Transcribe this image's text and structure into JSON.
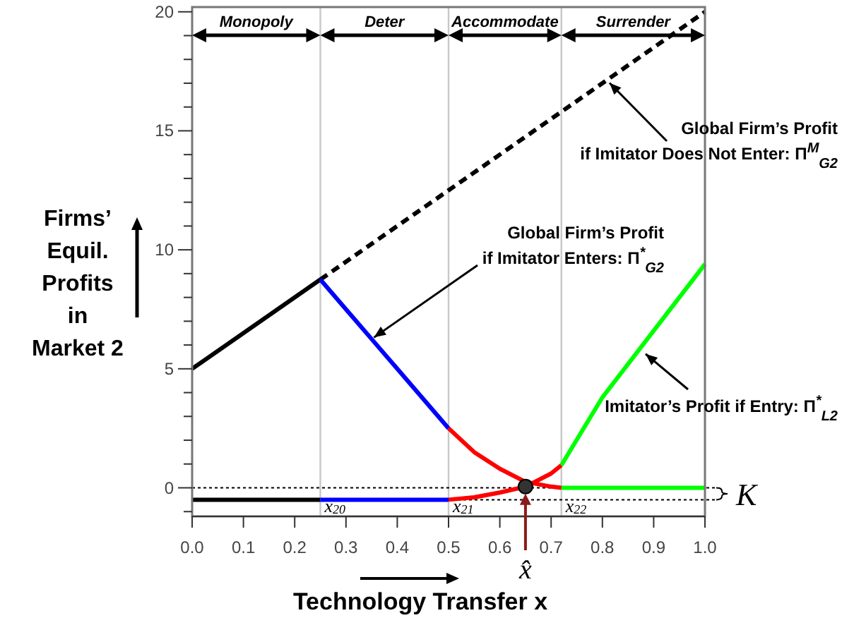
{
  "chart_data": {
    "type": "line",
    "xlabel": "Technology Transfer x",
    "ylabel": "Firms’ Equil. Profits in Market 2",
    "xlim": [
      0,
      1
    ],
    "ylim": [
      -1.2,
      20.2
    ],
    "xticks": [
      {
        "value": 0,
        "label": "0.0"
      },
      0.1,
      0.2,
      0.3,
      0.4,
      0.5,
      0.6,
      0.7,
      0.8,
      0.9,
      {
        "value": 1,
        "label": "1.0"
      }
    ],
    "yticks": [
      {
        "value": -1,
        "label": null
      },
      0,
      {
        "value": 1,
        "label": null
      },
      {
        "value": 2,
        "label": null
      },
      {
        "value": 3,
        "label": null
      },
      {
        "value": 4,
        "label": null
      },
      5,
      {
        "value": 6,
        "label": null
      },
      {
        "value": 7,
        "label": null
      },
      {
        "value": 8,
        "label": null
      },
      {
        "value": 9,
        "label": null
      },
      10,
      {
        "value": 11,
        "label": null
      },
      {
        "value": 12,
        "label": null
      },
      {
        "value": 13,
        "label": null
      },
      {
        "value": 14,
        "label": null
      },
      15,
      {
        "value": 16,
        "label": null
      },
      {
        "value": 17,
        "label": null
      },
      {
        "value": 18,
        "label": null
      },
      {
        "value": 19,
        "label": null
      },
      20
    ],
    "series": [
      {
        "type": "line",
        "color": "#000000",
        "x": [
          0,
          0.25
        ],
        "values": [
          5,
          8.75
        ],
        "line_style": "solid"
      },
      {
        "type": "line",
        "color": "#000000",
        "x": [
          0.25,
          1
        ],
        "values": [
          8.75,
          20
        ],
        "line_style": "dashed"
      },
      {
        "type": "line",
        "color": "#0000ff",
        "x": [
          0.25,
          0.3,
          0.35,
          0.4,
          0.45,
          0.5
        ],
        "values": [
          8.75,
          7.5,
          6.25,
          5,
          3.75,
          2.5
        ],
        "line_style": "solid"
      },
      {
        "type": "line",
        "color": "#ff0000",
        "x": [
          0.5,
          0.55,
          0.6,
          0.65,
          0.7,
          0.72
        ],
        "values": [
          2.5,
          1.5,
          0.8,
          0.25,
          0.05,
          0
        ],
        "line_style": "solid"
      },
      {
        "type": "line",
        "color": "#ff0000",
        "x": [
          0.5,
          0.55,
          0.6,
          0.65,
          0.7,
          0.72
        ],
        "values": [
          -0.5,
          -0.4,
          -0.2,
          0.05,
          0.6,
          0.95
        ],
        "line_style": "solid"
      },
      {
        "type": "line",
        "color": "#00ff00",
        "x": [
          0.72,
          0.8,
          0.9,
          1
        ],
        "values": [
          0.95,
          3.8,
          6.6,
          9.4
        ],
        "line_style": "solid"
      },
      {
        "type": "line",
        "color": "#00ff00",
        "x": [
          0.72,
          1
        ],
        "values": [
          0,
          0
        ],
        "line_style": "solid"
      },
      {
        "type": "line",
        "color": "#000000",
        "x": [
          0,
          0.25
        ],
        "values": [
          -0.5,
          -0.5
        ],
        "line_style": "solid"
      },
      {
        "type": "line",
        "color": "#0000ff",
        "x": [
          0.25,
          0.5
        ],
        "values": [
          -0.5,
          -0.5
        ],
        "line_style": "solid"
      },
      {
        "type": "scatter",
        "color": "#333333",
        "x": [
          0.65
        ],
        "values": [
          0.05
        ],
        "marker": "circle"
      }
    ],
    "ref_lines": [
      {
        "axis": "x",
        "value": 0.25,
        "label": "x$_{20}$",
        "color": "#c8c8c8",
        "line_style": "solid"
      },
      {
        "axis": "x",
        "value": 0.5,
        "label": "x$_{21}$",
        "color": "#c8c8c8",
        "line_style": "solid"
      },
      {
        "axis": "x",
        "value": 0.72,
        "label": "x$_{22}$",
        "color": "#c8c8c8",
        "line_style": "solid"
      },
      {
        "axis": "y",
        "value": 0,
        "color": "#000000",
        "line_style": "dotted"
      },
      {
        "axis": "y",
        "value": -0.5,
        "color": "#000000",
        "line_style": "dotted"
      }
    ],
    "annotations": [
      {
        "text": "Global Firm’s Profit if Imitator Does Not Enter: Π$^{M}$$_{G2}$",
        "x": 0.81,
        "y": 17.1
      },
      {
        "text": "Global Firm’s Profit if Imitator Enters: Π$^{*}$$_{G2}$",
        "x": 0.35,
        "y": 6.25
      },
      {
        "text": "Imitator’s Profit if Entry: Π$^{*}$$_{L2}$",
        "x": 0.88,
        "y": 5.7
      },
      {
        "text": "x̂",
        "x": 0.65,
        "y": 0.05
      },
      {
        "text": "K",
        "x": 1,
        "y": -0.25
      },
      "Monopoly",
      "Deter",
      "Accommodate",
      "Surrender"
    ]
  }
}
